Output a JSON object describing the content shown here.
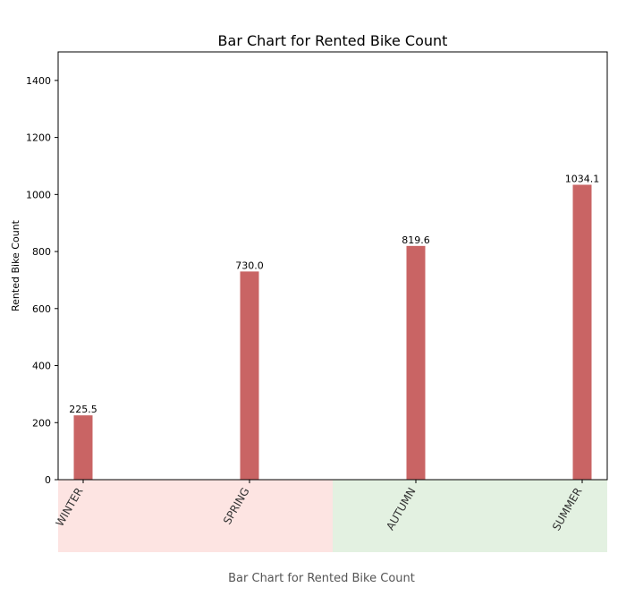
{
  "chart_data": {
    "type": "bar",
    "title": "Bar Chart for Rented Bike Count",
    "xlabel": "",
    "ylabel": "Rented Bike Count",
    "categories": [
      "WINTER",
      "SPRING",
      "AUTUMN",
      "SUMMER"
    ],
    "values": [
      225.5,
      730.0,
      819.6,
      1034.1
    ],
    "value_labels": [
      "225.5",
      "730.0",
      "819.6",
      "1034.1"
    ],
    "ylim": [
      0,
      1500
    ],
    "yticks": [
      0,
      200,
      400,
      600,
      800,
      1000,
      1200,
      1400
    ],
    "grid": false,
    "bar_color": "#c96464",
    "category_band_colors": [
      "#fde4e2",
      "#fde4e2",
      "#e3f1e1",
      "#e3f1e1"
    ]
  },
  "caption": "Bar Chart for Rented Bike Count"
}
